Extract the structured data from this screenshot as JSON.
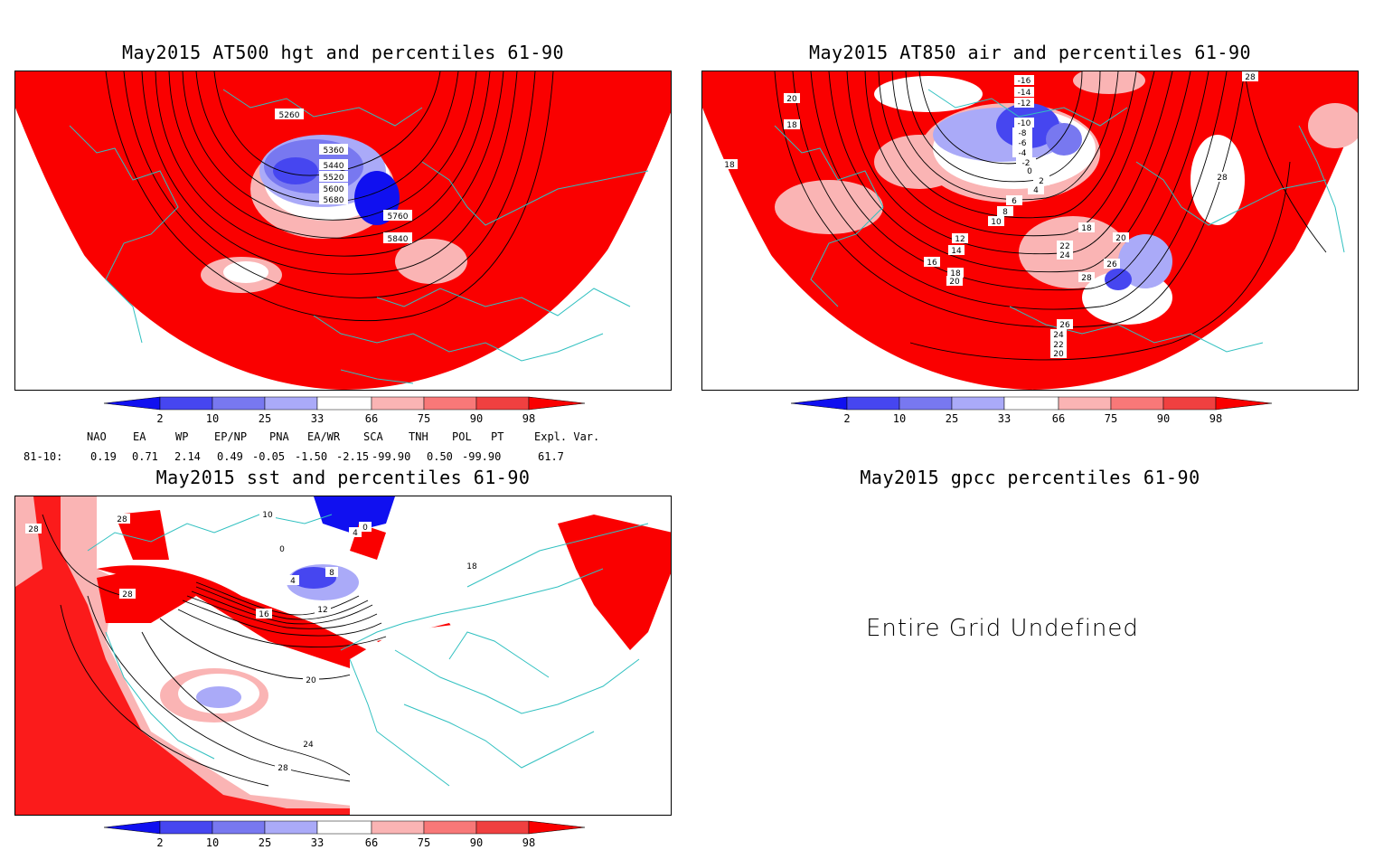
{
  "panels": {
    "hgt": {
      "title": "May2015 AT500 hgt and percentiles 61-90",
      "contour_labels": [
        "5260",
        "5360",
        "5440",
        "5520",
        "5600",
        "5680",
        "5760",
        "5840"
      ]
    },
    "air": {
      "title": "May2015 AT850 air and percentiles 61-90",
      "contour_labels": [
        "-16",
        "-14",
        "-12",
        "-10",
        "-8",
        "-6",
        "-4",
        "-2",
        "0",
        "2",
        "4",
        "6",
        "8",
        "10",
        "12",
        "14",
        "16",
        "18",
        "18",
        "18",
        "18",
        "20",
        "20",
        "20",
        "20",
        "22",
        "22",
        "24",
        "24",
        "26",
        "26",
        "28",
        "28",
        "28"
      ]
    },
    "sst": {
      "title": "May2015 sst and percentiles 61-90",
      "contour_labels": [
        "28",
        "28",
        "28",
        "28",
        "24",
        "20",
        "16",
        "12",
        "8",
        "4",
        "4",
        "0",
        "0",
        "10",
        "18"
      ]
    },
    "gpcc": {
      "title": "May2015 gpcc percentiles 61-90",
      "message": "Entire Grid Undefined"
    }
  },
  "colorbar": {
    "labels": [
      "2",
      "10",
      "25",
      "33",
      "66",
      "75",
      "90",
      "98"
    ],
    "colors": [
      "#1010f0",
      "#4646f0",
      "#7878f0",
      "#aaaaf8",
      "#ffffff",
      "#fab4b4",
      "#f87878",
      "#f04040",
      "#fa0000"
    ]
  },
  "teleconnections": {
    "headers": [
      "NAO",
      "EA",
      "WP",
      "EP/NP",
      "PNA",
      "EA/WR",
      "SCA",
      "TNH",
      "POL",
      "PT",
      "Expl. Var."
    ],
    "row_label": "81-10:",
    "values": [
      "0.19",
      "0.71",
      "2.14",
      "0.49",
      "-0.05",
      "-1.50",
      "-2.15",
      "-99.90",
      "0.50",
      "-99.90",
      "61.7"
    ]
  },
  "colors": {
    "red": "#fa0000",
    "coast": "#30c0c0",
    "contour": "#000000"
  }
}
